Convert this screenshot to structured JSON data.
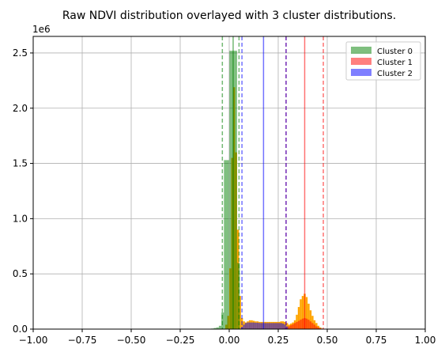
{
  "chart_data": {
    "type": "bar",
    "title": "Raw NDVI distribution overlayed with 3 cluster distributions.",
    "xlabel": "",
    "ylabel": "",
    "offset_label": "1e6",
    "xlim": [
      -1.0,
      1.0
    ],
    "ylim": [
      0,
      2650000
    ],
    "grid": true,
    "xticks": [
      -1.0,
      -0.75,
      -0.5,
      -0.25,
      0.0,
      0.25,
      0.5,
      0.75,
      1.0
    ],
    "xtick_labels": [
      "−1.00",
      "−0.75",
      "−0.50",
      "−0.25",
      "0.00",
      "0.25",
      "0.50",
      "0.75",
      "1.00"
    ],
    "yticks": [
      0,
      500000,
      1000000,
      1500000,
      2000000,
      2500000
    ],
    "ytick_labels": [
      "0.0",
      "0.5",
      "1.0",
      "1.5",
      "2.0",
      "2.5"
    ],
    "legend": {
      "position": "top-right",
      "entries": [
        {
          "label": "Cluster 0",
          "color": "#008000"
        },
        {
          "label": "Cluster 1",
          "color": "#ff0000"
        },
        {
          "label": "Cluster 2",
          "color": "#0000ff"
        }
      ]
    },
    "series": [
      {
        "name": "Raw NDVI",
        "color": "#ffa500",
        "alpha": 1.0,
        "bin_width": 0.01,
        "bins": [
          [
            -0.02,
            40000
          ],
          [
            -0.01,
            120000
          ],
          [
            0.0,
            550000
          ],
          [
            0.01,
            1550000
          ],
          [
            0.02,
            2190000
          ],
          [
            0.03,
            1600000
          ],
          [
            0.04,
            900000
          ],
          [
            0.05,
            300000
          ],
          [
            0.06,
            100000
          ],
          [
            0.07,
            70000
          ],
          [
            0.08,
            60000
          ],
          [
            0.09,
            70000
          ],
          [
            0.1,
            80000
          ],
          [
            0.11,
            80000
          ],
          [
            0.12,
            75000
          ],
          [
            0.13,
            70000
          ],
          [
            0.14,
            70000
          ],
          [
            0.15,
            65000
          ],
          [
            0.16,
            65000
          ],
          [
            0.17,
            65000
          ],
          [
            0.18,
            65000
          ],
          [
            0.19,
            65000
          ],
          [
            0.2,
            65000
          ],
          [
            0.21,
            65000
          ],
          [
            0.22,
            65000
          ],
          [
            0.23,
            65000
          ],
          [
            0.24,
            65000
          ],
          [
            0.25,
            65000
          ],
          [
            0.26,
            70000
          ],
          [
            0.27,
            70000
          ],
          [
            0.28,
            65000
          ],
          [
            0.29,
            55000
          ],
          [
            0.3,
            40000
          ],
          [
            0.31,
            50000
          ],
          [
            0.32,
            60000
          ],
          [
            0.33,
            80000
          ],
          [
            0.34,
            130000
          ],
          [
            0.35,
            200000
          ],
          [
            0.36,
            270000
          ],
          [
            0.37,
            300000
          ],
          [
            0.38,
            320000
          ],
          [
            0.39,
            290000
          ],
          [
            0.4,
            230000
          ],
          [
            0.41,
            170000
          ],
          [
            0.42,
            120000
          ],
          [
            0.43,
            80000
          ],
          [
            0.44,
            55000
          ],
          [
            0.45,
            30000
          ],
          [
            0.46,
            15000
          ],
          [
            0.47,
            5000
          ]
        ]
      },
      {
        "name": "Cluster 0",
        "color": "#008000",
        "alpha": 0.5,
        "bin_width": 0.013,
        "bins": [
          [
            -0.105,
            2000
          ],
          [
            -0.092,
            5000
          ],
          [
            -0.079,
            10000
          ],
          [
            -0.066,
            15000
          ],
          [
            -0.053,
            30000
          ],
          [
            -0.04,
            150000
          ],
          [
            -0.027,
            1530000
          ],
          [
            -0.014,
            1530000
          ],
          [
            0.001,
            2520000
          ],
          [
            0.014,
            2520000
          ],
          [
            0.027,
            2520000
          ],
          [
            0.041,
            600000
          ]
        ]
      },
      {
        "name": "Cluster 1",
        "color": "#ff0000",
        "alpha": 0.5,
        "bin_width": 0.01,
        "bins": [
          [
            0.27,
            5000
          ],
          [
            0.28,
            10000
          ],
          [
            0.29,
            15000
          ],
          [
            0.3,
            25000
          ],
          [
            0.31,
            35000
          ],
          [
            0.32,
            45000
          ],
          [
            0.33,
            55000
          ],
          [
            0.34,
            65000
          ],
          [
            0.35,
            75000
          ],
          [
            0.36,
            85000
          ],
          [
            0.37,
            95000
          ],
          [
            0.38,
            100000
          ],
          [
            0.39,
            95000
          ],
          [
            0.4,
            85000
          ],
          [
            0.41,
            70000
          ],
          [
            0.42,
            55000
          ],
          [
            0.43,
            40000
          ],
          [
            0.44,
            25000
          ],
          [
            0.45,
            15000
          ],
          [
            0.46,
            8000
          ],
          [
            0.47,
            3000
          ]
        ]
      },
      {
        "name": "Cluster 2",
        "color": "#0000ff",
        "alpha": 0.5,
        "bin_width": 0.01,
        "bins": [
          [
            0.06,
            20000
          ],
          [
            0.07,
            40000
          ],
          [
            0.08,
            55000
          ],
          [
            0.09,
            60000
          ],
          [
            0.1,
            60000
          ],
          [
            0.11,
            60000
          ],
          [
            0.12,
            60000
          ],
          [
            0.13,
            58000
          ],
          [
            0.14,
            58000
          ],
          [
            0.15,
            56000
          ],
          [
            0.16,
            55000
          ],
          [
            0.17,
            55000
          ],
          [
            0.18,
            55000
          ],
          [
            0.19,
            55000
          ],
          [
            0.2,
            55000
          ],
          [
            0.21,
            55000
          ],
          [
            0.22,
            55000
          ],
          [
            0.23,
            55000
          ],
          [
            0.24,
            55000
          ],
          [
            0.25,
            55000
          ],
          [
            0.26,
            55000
          ],
          [
            0.27,
            50000
          ],
          [
            0.28,
            40000
          ],
          [
            0.29,
            25000
          ]
        ]
      }
    ],
    "vlines": [
      {
        "x": 0.02,
        "color": "#008000",
        "style": "solid"
      },
      {
        "x": -0.035,
        "color": "#008000",
        "style": "dashed"
      },
      {
        "x": 0.05,
        "color": "#008000",
        "style": "dashed"
      },
      {
        "x": 0.385,
        "color": "#ff0000",
        "style": "solid"
      },
      {
        "x": 0.29,
        "color": "#ff0000",
        "style": "dashed"
      },
      {
        "x": 0.48,
        "color": "#ff0000",
        "style": "dashed"
      },
      {
        "x": 0.175,
        "color": "#0000ff",
        "style": "solid"
      },
      {
        "x": 0.065,
        "color": "#0000ff",
        "style": "dashed"
      },
      {
        "x": 0.29,
        "color": "#0000ff",
        "style": "dashed"
      }
    ]
  }
}
